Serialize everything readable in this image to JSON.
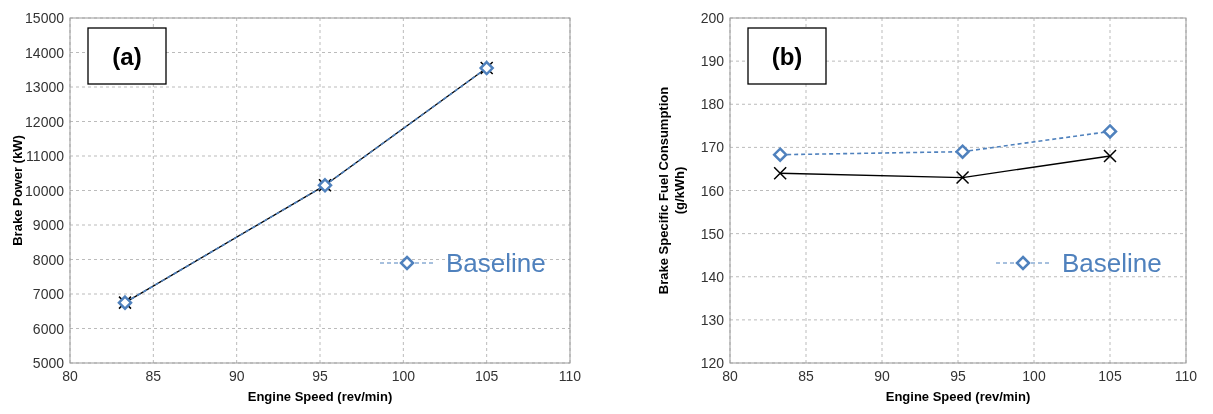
{
  "chart_data": [
    {
      "type": "line",
      "xlabel": "Engine  Speed (rev/min)",
      "ylabel": "Brake Power (kW)",
      "annotations": [
        "(a)"
      ],
      "xlim": [
        80,
        110
      ],
      "xticks": [
        80,
        85,
        90,
        95,
        100,
        105,
        110
      ],
      "ylim": [
        5000,
        15000
      ],
      "yticks": [
        5000,
        6000,
        7000,
        8000,
        9000,
        10000,
        11000,
        12000,
        13000,
        14000,
        15000
      ],
      "grid": true,
      "legend": "bottom right",
      "series": [
        {
          "name": "Baseline",
          "color": "#4f81bd",
          "x": [
            83.3,
            95.3,
            105
          ],
          "values": [
            6750,
            10150,
            13550
          ],
          "marker": "diamond",
          "line_style": "dashed"
        },
        {
          "color": "#000000",
          "x": [
            83.3,
            95.3,
            105
          ],
          "values": [
            6750,
            10150,
            13550
          ],
          "marker": "cross",
          "line_style": "solid"
        }
      ]
    },
    {
      "type": "line",
      "xlabel": "Engine  Speed (rev/min)",
      "ylabel": "Brake Specific Fuel Consumption\n(g/kWh)",
      "annotations": [
        "(b)"
      ],
      "xlim": [
        80,
        110
      ],
      "xticks": [
        80,
        85,
        90,
        95,
        100,
        105,
        110
      ],
      "ylim": [
        120,
        200
      ],
      "yticks": [
        120,
        130,
        140,
        150,
        160,
        170,
        180,
        190,
        200
      ],
      "grid": true,
      "legend": "bottom right",
      "series": [
        {
          "name": "Baseline",
          "color": "#4f81bd",
          "x": [
            83.3,
            95.3,
            105
          ],
          "values": [
            168.3,
            169,
            173.7
          ],
          "marker": "diamond",
          "line_style": "dashed"
        },
        {
          "color": "#000000",
          "x": [
            83.3,
            95.3,
            105
          ],
          "values": [
            164,
            163,
            168
          ],
          "marker": "cross",
          "line_style": "solid"
        }
      ]
    }
  ]
}
